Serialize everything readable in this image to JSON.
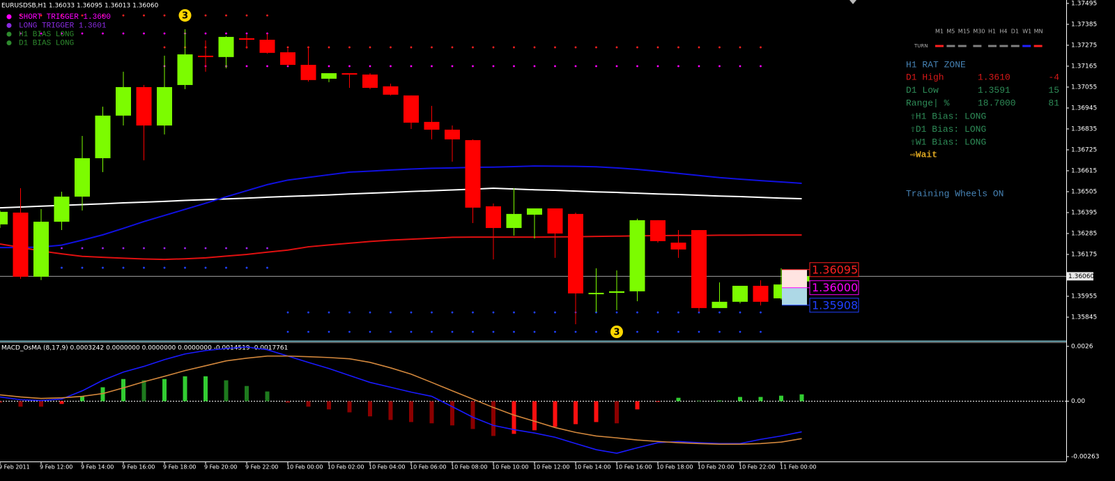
{
  "chart_data": [
    {
      "type": "candlestick",
      "title": "EURUSDSB,H1  1.36033 1.36095 1.36013 1.36060",
      "categories": [
        "9 Feb 2011",
        null,
        "9 Feb 12:00",
        null,
        "9 Feb 14:00",
        null,
        "9 Feb 16:00",
        null,
        "9 Feb 18:00",
        null,
        "9 Feb 20:00",
        null,
        "9 Feb 22:00",
        null,
        "10 Feb 00:00",
        null,
        "10 Feb 02:00",
        null,
        "10 Feb 04:00",
        null,
        "10 Feb 06:00",
        null,
        "10 Feb 08:00",
        null,
        "10 Feb 10:00",
        null,
        "10 Feb 12:00",
        null,
        "10 Feb 14:00",
        null,
        "10 Feb 16:00",
        null,
        "10 Feb 18:00",
        null,
        "10 Feb 20:00",
        null,
        "10 Feb 22:00",
        null,
        "11 Feb 00:00",
        null
      ],
      "open": [
        1.36333,
        1.36395,
        1.36058,
        1.36347,
        1.36479,
        1.36681,
        1.36905,
        1.37055,
        1.36853,
        1.37066,
        1.3722,
        1.37213,
        1.37312,
        1.37304,
        1.37238,
        1.37172,
        1.37099,
        1.37128,
        1.37121,
        1.37059,
        1.37011,
        1.36872,
        1.36831,
        1.36776,
        1.36428,
        1.36314,
        1.36384,
        1.36417,
        1.36388,
        1.3597,
        1.35973,
        1.35981,
        1.36355,
        1.36237,
        1.36303,
        1.35893,
        1.35926,
        1.3601,
        1.35944,
        1.36033
      ],
      "high": [
        1.36406,
        1.36523,
        1.36413,
        1.36505,
        1.36798,
        1.36952,
        1.37136,
        1.37066,
        1.3722,
        1.37359,
        1.37301,
        1.37323,
        1.3733,
        1.37337,
        1.37257,
        1.37264,
        1.37128,
        1.37128,
        1.37128,
        1.37073,
        1.37011,
        1.36956,
        1.36853,
        1.3678,
        1.36443,
        1.36523,
        1.36413,
        1.36417,
        1.36395,
        1.36102,
        1.36091,
        1.36363,
        1.36355,
        1.36303,
        1.36303,
        1.36028,
        1.3601,
        1.36039,
        1.36102,
        1.36095
      ],
      "low": [
        1.36314,
        1.36047,
        1.3604,
        1.36303,
        1.36406,
        1.36608,
        1.36853,
        1.3667,
        1.36806,
        1.37044,
        1.37136,
        1.37154,
        1.37257,
        1.37231,
        1.37165,
        1.37084,
        1.37081,
        1.37051,
        1.37044,
        1.37011,
        1.36835,
        1.3678,
        1.36663,
        1.3634,
        1.36149,
        1.36274,
        1.36259,
        1.36157,
        1.35808,
        1.35871,
        1.35882,
        1.35929,
        1.36237,
        1.36157,
        1.35874,
        1.35893,
        1.35918,
        1.35907,
        1.35937,
        1.36013
      ],
      "close": [
        1.36399,
        1.36058,
        1.36347,
        1.36479,
        1.36681,
        1.36905,
        1.37055,
        1.36853,
        1.37055,
        1.37227,
        1.37213,
        1.37319,
        1.37304,
        1.37235,
        1.37172,
        1.37092,
        1.37128,
        1.37121,
        1.37051,
        1.37015,
        1.36868,
        1.36831,
        1.3678,
        1.36421,
        1.36314,
        1.36388,
        1.36417,
        1.36285,
        1.3597,
        1.35973,
        1.35981,
        1.36355,
        1.36245,
        1.36201,
        1.35893,
        1.35926,
        1.3601,
        1.35926,
        1.36017,
        1.3606
      ],
      "up_color": "#7cfc00",
      "down_color": "#ff0000",
      "ylim": [
        1.35724,
        1.37513
      ],
      "yticks": [
        1.37495,
        1.37385,
        1.37275,
        1.37165,
        1.37055,
        1.36945,
        1.36835,
        1.36725,
        1.36615,
        1.36505,
        1.36395,
        1.36285,
        1.36175,
        1.35955,
        1.35845
      ],
      "current_price": {
        "value": 1.3606,
        "label": "1.36060"
      },
      "lines": [
        {
          "color": "#ffffff",
          "values": [
            1.3642,
            1.36424,
            1.36429,
            1.36433,
            1.36437,
            1.36441,
            1.36446,
            1.3645,
            1.36454,
            1.36459,
            1.36463,
            1.36467,
            1.36471,
            1.36476,
            1.3648,
            1.36484,
            1.36488,
            1.36493,
            1.36497,
            1.36501,
            1.36506,
            1.3651,
            1.36514,
            1.36518,
            1.36523,
            1.36519,
            1.36515,
            1.36512,
            1.36508,
            1.36504,
            1.36501,
            1.36497,
            1.36493,
            1.3649,
            1.36486,
            1.36482,
            1.36479,
            1.36475,
            1.36471,
            1.36468
          ]
        },
        {
          "color": "#1010e0",
          "values": [
            1.36211,
            1.36211,
            1.36214,
            1.36224,
            1.3625,
            1.36278,
            1.36312,
            1.36348,
            1.3638,
            1.36412,
            1.36444,
            1.36478,
            1.3651,
            1.36542,
            1.36566,
            1.3658,
            1.36594,
            1.36608,
            1.36613,
            1.36619,
            1.36624,
            1.36628,
            1.3663,
            1.36633,
            1.36634,
            1.36637,
            1.3664,
            1.36639,
            1.36638,
            1.36636,
            1.3663,
            1.36622,
            1.36612,
            1.36601,
            1.3659,
            1.36579,
            1.36571,
            1.36563,
            1.36556,
            1.36549
          ]
        },
        {
          "color": "#e01010",
          "values": [
            1.3623,
            1.36212,
            1.36193,
            1.36178,
            1.36165,
            1.3616,
            1.36155,
            1.36151,
            1.36149,
            1.36152,
            1.36157,
            1.36166,
            1.36175,
            1.36187,
            1.36198,
            1.36215,
            1.36225,
            1.36234,
            1.36243,
            1.3625,
            1.36255,
            1.3626,
            1.36265,
            1.36266,
            1.36266,
            1.36266,
            1.36266,
            1.36267,
            1.36268,
            1.3627,
            1.36271,
            1.36273,
            1.36274,
            1.36275,
            1.36275,
            1.36276,
            1.36276,
            1.36277,
            1.36277,
            1.36277
          ]
        }
      ],
      "levels": [
        {
          "value": 1.37432,
          "color": "#ff2020",
          "from": 1,
          "to": 13
        },
        {
          "value": 1.37337,
          "color": "#ff00ff",
          "from": 1,
          "to": 13
        },
        {
          "value": 1.37264,
          "color": "#ff2020",
          "from": 8,
          "to": 37
        },
        {
          "value": 1.37165,
          "color": "#ff00ff",
          "from": 8,
          "to": 37
        },
        {
          "value": 1.36208,
          "color": "#a020f0",
          "from": 2,
          "to": 13
        },
        {
          "value": 1.36105,
          "color": "#2040ff",
          "from": 2,
          "to": 13
        },
        {
          "value": 1.3587,
          "color": "#2040ff",
          "from": 14,
          "to": 37
        },
        {
          "value": 1.35768,
          "color": "#2040ff",
          "from": 14,
          "to": 37
        }
      ],
      "price_tags": [
        {
          "value": 1.36095,
          "label": "1.36095",
          "color": "#ff2020"
        },
        {
          "value": 1.36,
          "label": "1.36000",
          "color": "#ff00ff"
        },
        {
          "value": 1.35908,
          "label": "1.35908",
          "color": "#2040ff"
        }
      ],
      "annotations": [
        {
          "label": "3",
          "index": 9,
          "value": 1.37432
        },
        {
          "label": "3",
          "index": 30,
          "value": 1.35768
        }
      ],
      "legend": [
        {
          "name": "SHORT TRIGGER 1.3600",
          "color": "#ff00ff"
        },
        {
          "name": "LONG TRIGGER  1.3601",
          "color": "#8a2be2"
        },
        {
          "name": "H1 BIAS LONG",
          "color": "#2e8b2e"
        },
        {
          "name": "D1 BIAS LONG",
          "color": "#2e8b2e"
        }
      ],
      "info_panel": {
        "timeframes": [
          "M1",
          "M5",
          "M15",
          "M30",
          "H1",
          "H4",
          "D1",
          "W1",
          "MN"
        ],
        "turn_label": "TURN",
        "turn_colors": [
          "#ff2020",
          "#808080",
          "#808080",
          "#808080",
          "#808080",
          "#808080",
          "#808080",
          "#2020ff",
          "#ff2020"
        ],
        "title": "H1 RAT ZONE",
        "rows": [
          {
            "cells": [
              "D1 High",
              "1.3610",
              "-4"
            ],
            "color": "#d81818"
          },
          {
            "cells": [
              "D1 Low",
              "1.3591",
              "15"
            ],
            "color": "#2e8b57"
          },
          {
            "cells": [
              "Range| %",
              "18.7000",
              "81"
            ],
            "color": "#2e8b57"
          }
        ],
        "bias": [
          "⇧H1 Bias: LONG",
          "⇧D1 Bias: LONG",
          "⇧W1 Bias: LONG"
        ],
        "status": "⇨Wait",
        "footer": "Training Wheels ON"
      }
    },
    {
      "type": "bar",
      "title": "MACD_OsMA (8,17,9) 0.0003242 0.0000000 0.0000000 0.0000000 -0.0014519 -0.0017761",
      "values": [
        -7e-05,
        -0.00026,
        -0.00026,
        -0.00013,
        0.00023,
        0.00066,
        0.00105,
        0.00099,
        0.00105,
        0.00118,
        0.00118,
        0.00099,
        0.00072,
        0.00046,
        -7e-05,
        -0.00026,
        -0.00039,
        -0.00053,
        -0.00072,
        -0.00089,
        -0.00099,
        -0.00105,
        -0.00115,
        -0.00132,
        -0.00165,
        -0.00155,
        -0.00138,
        -0.00122,
        -0.00109,
        -0.00099,
        -0.00105,
        -0.00039,
        -3e-05,
        0.00016,
        3e-05,
        3e-05,
        0.0002,
        0.0002,
        0.00026,
        0.0003242
      ],
      "lines": [
        {
          "color": "#1a1aff",
          "values": [
            0.0002,
            7e-05,
            3e-05,
            0.0001,
            0.00049,
            0.00099,
            0.00138,
            0.00165,
            0.00197,
            0.00224,
            0.0024,
            0.0025,
            0.00257,
            0.00244,
            0.00214,
            0.00184,
            0.00155,
            0.00122,
            0.00089,
            0.00066,
            0.00043,
            0.00023,
            -0.00026,
            -0.00076,
            -0.00115,
            -0.00135,
            -0.00151,
            -0.00171,
            -0.00201,
            -0.0023,
            -0.00247,
            -0.00221,
            -0.00197,
            -0.00191,
            -0.00197,
            -0.00201,
            -0.00201,
            -0.00181,
            -0.00165,
            -0.0014519
          ]
        },
        {
          "color": "#d2873c",
          "values": [
            0.0003,
            0.0002,
            0.00013,
            0.00016,
            0.00023,
            0.00036,
            0.00063,
            0.00092,
            0.00118,
            0.00145,
            0.00168,
            0.00191,
            0.00204,
            0.00214,
            0.00214,
            0.00211,
            0.00207,
            0.00201,
            0.00184,
            0.00158,
            0.00128,
            0.00089,
            0.00049,
            0.0001,
            -0.0003,
            -0.00066,
            -0.00095,
            -0.00125,
            -0.00148,
            -0.00165,
            -0.00174,
            -0.00184,
            -0.00191,
            -0.00197,
            -0.00201,
            -0.00204,
            -0.00204,
            -0.00201,
            -0.00194,
            -0.0017761
          ]
        }
      ],
      "ylim": [
        -0.00286,
        0.00276
      ],
      "yticks": [
        0.0026,
        {
          "value": 0,
          "label": "0.00"
        },
        -0.00263
      ]
    }
  ]
}
